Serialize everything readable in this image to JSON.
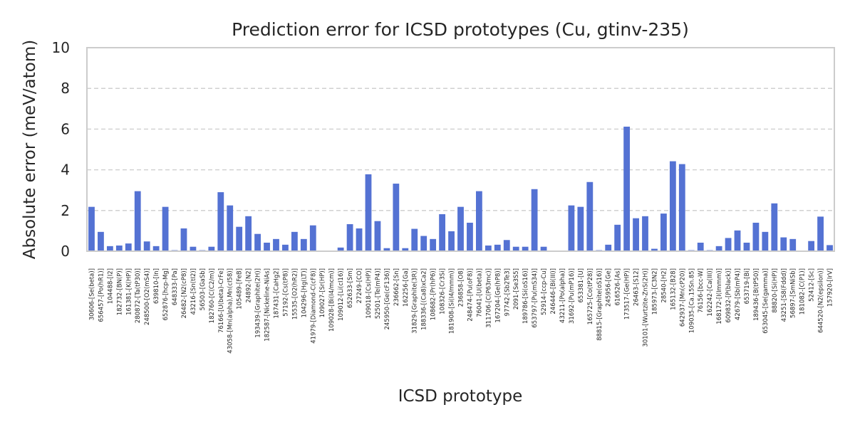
{
  "chart_data": {
    "type": "bar",
    "title": "Prediction error for ICSD prototypes (Cu, gtinv-235)",
    "xlabel": "ICSD prototype",
    "ylabel": "Absolute error (meV/atom)",
    "ylim": [
      0,
      10
    ],
    "yticks": [
      0,
      2,
      4,
      6,
      8,
      10
    ],
    "grid": true,
    "bar_color": "#5472d3",
    "categories": [
      "30606-[Se(beta)]",
      "656457-[Po(hR1)]",
      "104488-[I2]",
      "182732-[BN(P)]",
      "161381-[K(HP)]",
      "280872-[Ta(tP30)]",
      "248500-[O2(mS4)]",
      "639810-[In]",
      "652876-[hcp-Mg]",
      "648333-[Pa]",
      "26482-[N2(cP8)]",
      "43216-[Sn(tI2)]",
      "56503-[GaSb]",
      "182760-[C(C2/m)]",
      "76166-[U(beta)-CrFe]",
      "43058-[Mn(alpha),Mn(cI58)]",
      "105489-[FeB]",
      "24892-[N2]",
      "193439-[Graphite(2H)]",
      "182587-[Nickeline-NiAs]",
      "187431-[CaHg2]",
      "57192-[Cs(tP8)]",
      "15535-[O2(hR2)]",
      "104296-[Hg(LT)]",
      "41979-[Diamond-C(cF8)]",
      "109027-[Sr(HP)]",
      "109028-[Bi(I4/mcm)]",
      "109012-[Li(cI16)]",
      "652633-[Sm]",
      "27249-[CO]",
      "109018-[Cs(HP)]",
      "52501-[Te(mP4)]",
      "245950-[Ge(cF136)]",
      "236662-[Sn]",
      "162256-[Ga]",
      "31829-[Graphite(3R)]",
      "188336-[(Ca8)xCa2]",
      "108682-[Pr(hP6)]",
      "108326-[Cr3Si]",
      "181908-[Si(I4/mmm)]",
      "236858-[O8]",
      "248474-[Pu(oF8)]",
      "76041-[U(beta)]",
      "311706-[C(P63mc)]",
      "167204-[Ge(hP8)]",
      "97742-[Sb2Te3]",
      "2091-[Se3S5]",
      "189786-[Si(oS16)]",
      "653797-[Pu(mS34)]",
      "52914-[ccp-Cu]",
      "246446-[Bi(III)]",
      "43211-[Po(alpha)]",
      "31692-[Pu(mP16)]",
      "653381-[U]",
      "165725-[Co(tP28)]",
      "88815-[Graphite(oS16)]",
      "245956-[Ge]",
      "616526-[As]",
      "173517-[Ge(HP)]",
      "26463-[S12]",
      "30101-[Wurtzite-ZnS(2H)]",
      "185973-[C3N2]",
      "28540-[H2]",
      "165132-[B28]",
      "642937-[Mn(cP20)]",
      "109035-[Ca.15Sn.85]",
      "76156-[bcc-W]",
      "162242-[Ca(III)]",
      "168172-[I(Immm)]",
      "609832-[P(black)]",
      "42679-[Sb(mP4)]",
      "653719-[Bi]",
      "189436-[B(tP50)]",
      "653045-[Se(gamma)]",
      "88820-[Si(HP)]",
      "43251-[S8(Fddd)]",
      "56897-[SmNiSb]",
      "181082-[C(P1)]",
      "52412-[Sc]",
      "644520-[N2(epsilon)]",
      "157920-[IrV]"
    ],
    "values": [
      2.18,
      0.95,
      0.25,
      0.28,
      0.38,
      2.95,
      0.48,
      0.25,
      2.18,
      0.05,
      1.12,
      0.22,
      0.05,
      0.22,
      2.9,
      2.25,
      1.2,
      1.72,
      0.85,
      0.42,
      0.6,
      0.32,
      0.95,
      0.6,
      1.27,
      0.0,
      0.0,
      0.18,
      1.33,
      1.12,
      3.78,
      1.48,
      0.15,
      3.32,
      0.15,
      1.1,
      0.75,
      0.6,
      1.82,
      0.98,
      2.18,
      1.4,
      2.95,
      0.28,
      0.32,
      0.55,
      0.22,
      0.22,
      3.05,
      0.22,
      0.0,
      0.0,
      2.25,
      2.18,
      3.4,
      0.05,
      0.32,
      1.3,
      6.12,
      1.62,
      1.72,
      0.12,
      1.85,
      4.42,
      4.28,
      0.05,
      0.42,
      0.05,
      0.25,
      0.65,
      1.02,
      0.42,
      1.4,
      0.95,
      2.35,
      0.68,
      0.6,
      0.0,
      0.5,
      1.7,
      0.3
    ]
  }
}
